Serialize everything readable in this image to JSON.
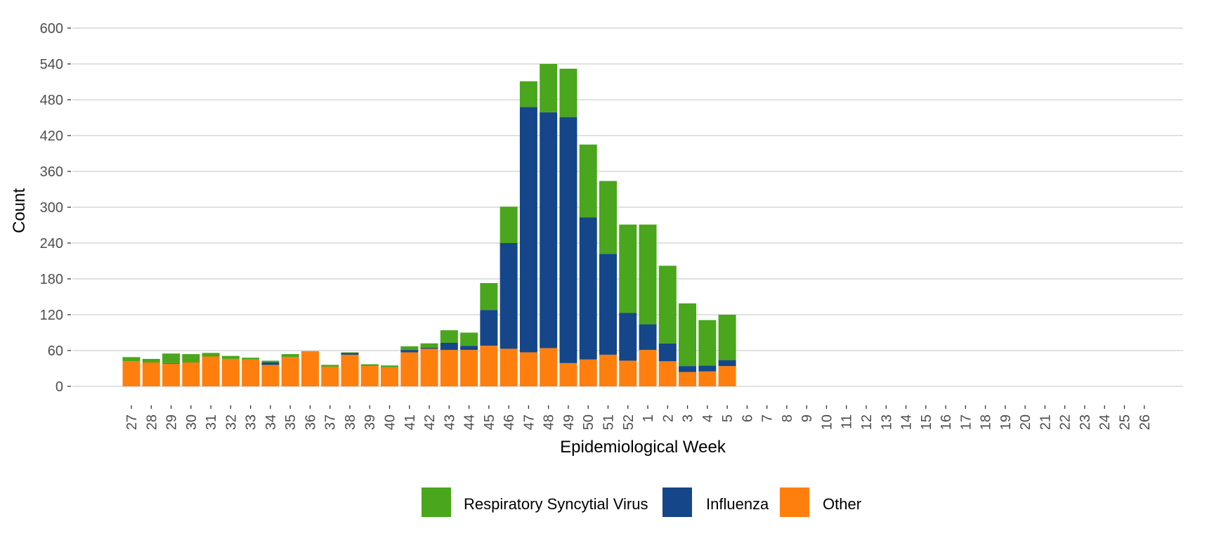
{
  "chart_data": {
    "type": "bar",
    "stacked": true,
    "xlabel": "Epidemiological Week",
    "ylabel": "Count",
    "ylim": [
      0,
      600
    ],
    "yticks": [
      0,
      60,
      120,
      180,
      240,
      300,
      360,
      420,
      480,
      540,
      600
    ],
    "grid": "horizontal major gridlines",
    "legend_position": "bottom",
    "categories": [
      "27",
      "28",
      "29",
      "30",
      "31",
      "32",
      "33",
      "34",
      "35",
      "36",
      "37",
      "38",
      "39",
      "40",
      "41",
      "42",
      "43",
      "44",
      "45",
      "46",
      "47",
      "48",
      "49",
      "50",
      "51",
      "52",
      "1",
      "2",
      "3",
      "4",
      "5",
      "6",
      "7",
      "8",
      "9",
      "10",
      "11",
      "12",
      "13",
      "14",
      "15",
      "16",
      "17",
      "18",
      "19",
      "20",
      "21",
      "22",
      "23",
      "24",
      "25",
      "26"
    ],
    "series": [
      {
        "name": "Other",
        "color": "#FF7F0E",
        "values": [
          42,
          40,
          38,
          40,
          50,
          46,
          45,
          36,
          49,
          59,
          33,
          53,
          34,
          32,
          57,
          63,
          61,
          61,
          68,
          63,
          57,
          64,
          39,
          45,
          53,
          43,
          61,
          42,
          24,
          25,
          34,
          null,
          null,
          null,
          null,
          null,
          null,
          null,
          null,
          null,
          null,
          null,
          null,
          null,
          null,
          null,
          null,
          null,
          null,
          null,
          null,
          null
        ]
      },
      {
        "name": "Influenza",
        "color": "#154689",
        "values": [
          0,
          0,
          1,
          0,
          0,
          0,
          0,
          4,
          0,
          0,
          0,
          3,
          0,
          0,
          4,
          2,
          12,
          7,
          60,
          177,
          411,
          395,
          412,
          238,
          169,
          80,
          43,
          30,
          10,
          10,
          10,
          null,
          null,
          null,
          null,
          null,
          null,
          null,
          null,
          null,
          null,
          null,
          null,
          null,
          null,
          null,
          null,
          null,
          null,
          null,
          null,
          null
        ]
      },
      {
        "name": "Respiratory Syncytial Virus",
        "color": "#4AA61C",
        "values": [
          7,
          6,
          16,
          14,
          6,
          5,
          3,
          3,
          5,
          0,
          3,
          1,
          3,
          3,
          6,
          7,
          21,
          22,
          45,
          61,
          43,
          81,
          81,
          122,
          122,
          148,
          167,
          130,
          105,
          76,
          76,
          null,
          null,
          null,
          null,
          null,
          null,
          null,
          null,
          null,
          null,
          null,
          null,
          null,
          null,
          null,
          null,
          null,
          null,
          null,
          null,
          null
        ]
      }
    ],
    "legend": [
      {
        "label": "Respiratory Syncytial Virus",
        "color": "#4AA61C"
      },
      {
        "label": "Influenza",
        "color": "#154689"
      },
      {
        "label": "Other",
        "color": "#FF7F0E"
      }
    ]
  }
}
